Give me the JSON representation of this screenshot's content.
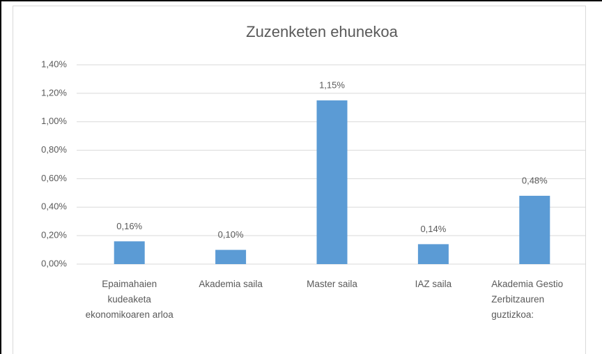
{
  "chart_data": {
    "type": "bar",
    "title": "Zuzenketen ehunekoa",
    "categories": [
      "Epaimahaien kudeaketa ekonomikoaren arloa",
      "Akademia saila",
      "Master saila",
      "IAZ saila",
      "Akademia Gestio Zerbitzauren guztizkoa:"
    ],
    "values": [
      0.16,
      0.1,
      1.15,
      0.14,
      0.48
    ],
    "value_labels": [
      "0,16%",
      "0,10%",
      "1,15%",
      "0,14%",
      "0,48%"
    ],
    "color": "#5b9bd5",
    "ylim": [
      0,
      1.4
    ],
    "yticks": [
      {
        "value": 0,
        "label": "0,00%"
      },
      {
        "value": 0.2,
        "label": "0,20%"
      },
      {
        "value": 0.4,
        "label": "0,40%"
      },
      {
        "value": 0.6,
        "label": "0,60%"
      },
      {
        "value": 0.8,
        "label": "0,80%"
      },
      {
        "value": 1.0,
        "label": "1,00%"
      },
      {
        "value": 1.2,
        "label": "1,20%"
      },
      {
        "value": 1.4,
        "label": "1,40%"
      }
    ],
    "grid": true
  }
}
